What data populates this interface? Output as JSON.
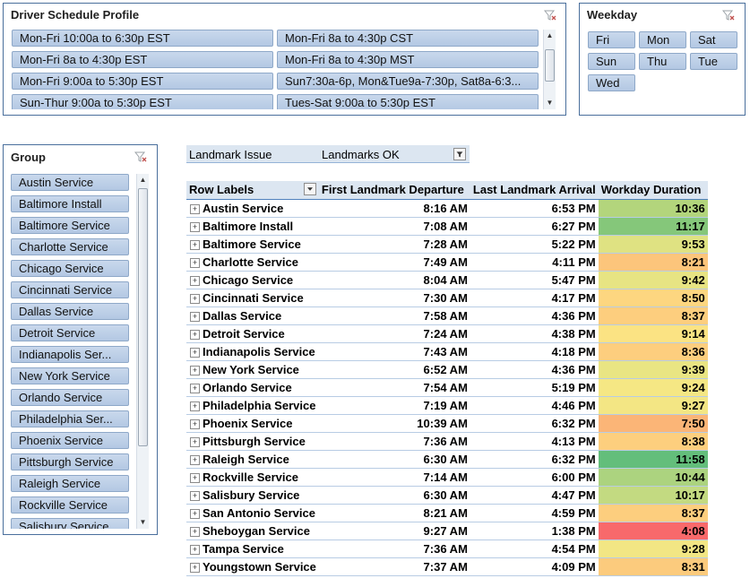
{
  "schedule_slicer": {
    "title": "Driver Schedule Profile",
    "items": [
      "Mon-Fri 10:00a to 6:30p EST",
      "Mon-Fri 8a to 4:30p CST",
      "Mon-Fri 8a to 4:30p EST",
      "Mon-Fri 8a to 4:30p MST",
      "Mon-Fri 9:00a to 5:30p EST",
      "Sun7:30a-6p, Mon&Tue9a-7:30p, Sat8a-6:3...",
      "Sun-Thur 9:00a to 5:30p EST",
      "Tues-Sat 9:00a to 5:30p EST"
    ]
  },
  "weekday_slicer": {
    "title": "Weekday",
    "items": [
      "Fri",
      "Mon",
      "Sat",
      "Sun",
      "Thu",
      "Tue",
      "Wed"
    ]
  },
  "group_slicer": {
    "title": "Group",
    "items": [
      "Austin Service",
      "Baltimore Install",
      "Baltimore Service",
      "Charlotte Service",
      "Chicago Service",
      "Cincinnati Service",
      "Dallas Service",
      "Detroit Service",
      "Indianapolis Ser...",
      "New York Service",
      "Orlando Service",
      "Philadelphia Ser...",
      "Phoenix Service",
      "Pittsburgh Service",
      "Raleigh Service",
      "Rockville Service",
      "Salisbury Service"
    ]
  },
  "page_filter": {
    "label": "Landmark Issue",
    "value": "Landmarks OK"
  },
  "pivot": {
    "headers": [
      "Row Labels",
      "First Landmark Departure",
      "Last Landmark Arrival",
      "Workday Duration"
    ],
    "expand_glyph": "+",
    "rows": [
      {
        "label": "Austin Service",
        "first": "8:16 AM",
        "last": "6:53 PM",
        "duration": "10:36",
        "color": "#b3d57c"
      },
      {
        "label": "Baltimore Install",
        "first": "7:08 AM",
        "last": "6:27 PM",
        "duration": "11:17",
        "color": "#85c77a"
      },
      {
        "label": "Baltimore Service",
        "first": "7:28 AM",
        "last": "5:22 PM",
        "duration": "9:53",
        "color": "#dfe282"
      },
      {
        "label": "Charlotte Service",
        "first": "7:49 AM",
        "last": "4:11 PM",
        "duration": "8:21",
        "color": "#fcc57b"
      },
      {
        "label": "Chicago Service",
        "first": "8:04 AM",
        "last": "5:47 PM",
        "duration": "9:42",
        "color": "#e7e483"
      },
      {
        "label": "Cincinnati Service",
        "first": "7:30 AM",
        "last": "4:17 PM",
        "duration": "8:50",
        "color": "#fdd680"
      },
      {
        "label": "Dallas Service",
        "first": "7:58 AM",
        "last": "4:36 PM",
        "duration": "8:37",
        "color": "#fdce7e"
      },
      {
        "label": "Detroit Service",
        "first": "7:24 AM",
        "last": "4:38 PM",
        "duration": "9:14",
        "color": "#fbe383"
      },
      {
        "label": "Indianapolis Service",
        "first": "7:43 AM",
        "last": "4:18 PM",
        "duration": "8:36",
        "color": "#fdce7e"
      },
      {
        "label": "New York Service",
        "first": "6:52 AM",
        "last": "4:36 PM",
        "duration": "9:39",
        "color": "#e9e583"
      },
      {
        "label": "Orlando Service",
        "first": "7:54 AM",
        "last": "5:19 PM",
        "duration": "9:24",
        "color": "#f5e784"
      },
      {
        "label": "Philadelphia Service",
        "first": "7:19 AM",
        "last": "4:46 PM",
        "duration": "9:27",
        "color": "#f3e684"
      },
      {
        "label": "Phoenix Service",
        "first": "10:39 AM",
        "last": "6:32 PM",
        "duration": "7:50",
        "color": "#fbb577"
      },
      {
        "label": "Pittsburgh Service",
        "first": "7:36 AM",
        "last": "4:13 PM",
        "duration": "8:38",
        "color": "#fdcf7e"
      },
      {
        "label": "Raleigh Service",
        "first": "6:30 AM",
        "last": "6:32 PM",
        "duration": "11:58",
        "color": "#63be7b"
      },
      {
        "label": "Rockville Service",
        "first": "7:14 AM",
        "last": "6:00 PM",
        "duration": "10:44",
        "color": "#acd37f"
      },
      {
        "label": "Salisbury Service",
        "first": "6:30 AM",
        "last": "4:47 PM",
        "duration": "10:17",
        "color": "#c3da81"
      },
      {
        "label": "San Antonio Service",
        "first": "8:21 AM",
        "last": "4:59 PM",
        "duration": "8:37",
        "color": "#fdce7e"
      },
      {
        "label": "Sheboygan Service",
        "first": "9:27 AM",
        "last": "1:38 PM",
        "duration": "4:08",
        "color": "#f8696b"
      },
      {
        "label": "Tampa Service",
        "first": "7:36 AM",
        "last": "4:54 PM",
        "duration": "9:28",
        "color": "#f2e684"
      },
      {
        "label": "Youngstown Service",
        "first": "7:37 AM",
        "last": "4:09 PM",
        "duration": "8:31",
        "color": "#fccb7d"
      }
    ]
  }
}
